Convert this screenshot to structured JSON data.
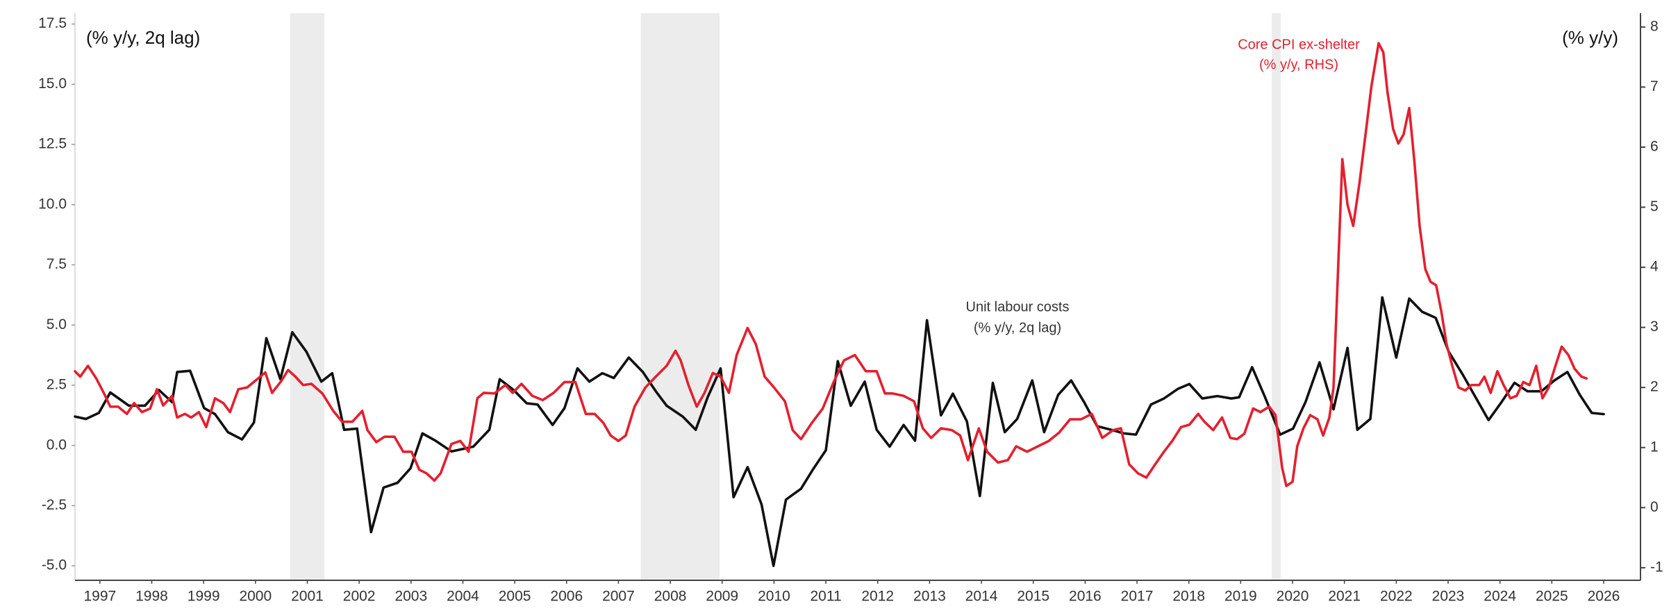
{
  "chart_data": {
    "type": "line",
    "left_axis_label": "(% y/y, 2q lag)",
    "right_axis_label": "(% y/y)",
    "xlim": [
      1997.02,
      2027.21
    ],
    "xticks": [
      {
        "value": 1997.5,
        "label": "1997"
      },
      {
        "value": 1998.5,
        "label": "1998"
      },
      {
        "value": 1999.5,
        "label": "1999"
      },
      {
        "value": 2000.5,
        "label": "2000"
      },
      {
        "value": 2001.5,
        "label": "2001"
      },
      {
        "value": 2002.5,
        "label": "2002"
      },
      {
        "value": 2003.5,
        "label": "2003"
      },
      {
        "value": 2004.5,
        "label": "2004"
      },
      {
        "value": 2005.5,
        "label": "2005"
      },
      {
        "value": 2006.5,
        "label": "2006"
      },
      {
        "value": 2007.5,
        "label": "2007"
      },
      {
        "value": 2008.5,
        "label": "2008"
      },
      {
        "value": 2009.5,
        "label": "2009"
      },
      {
        "value": 2010.5,
        "label": "2010"
      },
      {
        "value": 2011.5,
        "label": "2011"
      },
      {
        "value": 2012.5,
        "label": "2012"
      },
      {
        "value": 2013.5,
        "label": "2013"
      },
      {
        "value": 2014.5,
        "label": "2014"
      },
      {
        "value": 2015.5,
        "label": "2015"
      },
      {
        "value": 2016.5,
        "label": "2016"
      },
      {
        "value": 2017.5,
        "label": "2017"
      },
      {
        "value": 2018.5,
        "label": "2018"
      },
      {
        "value": 2019.5,
        "label": "2019"
      },
      {
        "value": 2020.5,
        "label": "2020"
      },
      {
        "value": 2021.5,
        "label": "2021"
      },
      {
        "value": 2022.5,
        "label": "2022"
      },
      {
        "value": 2023.5,
        "label": "2023"
      },
      {
        "value": 2024.5,
        "label": "2024"
      },
      {
        "value": 2025.5,
        "label": "2025"
      },
      {
        "value": 2026.5,
        "label": "2026"
      }
    ],
    "ylim": [
      -5.6,
      17.95
    ],
    "yticks": [
      {
        "value": -5,
        "label": "-5.0"
      },
      -2.5,
      {
        "value": 0,
        "label": "0.0"
      },
      2.5,
      {
        "value": 5,
        "label": "5.0"
      },
      7.5,
      {
        "value": 10,
        "label": "10.0"
      },
      12.5,
      {
        "value": 15,
        "label": "15.0"
      },
      17.5
    ],
    "y2lim": [
      -1.21,
      8.23
    ],
    "y2ticks": [
      -1,
      0,
      1,
      2,
      3,
      4,
      5,
      6,
      7,
      8
    ],
    "grid": false,
    "shading_color": "#ececec",
    "shading": [
      [
        2001.17,
        2001.83
      ],
      [
        2007.93,
        2009.45
      ],
      [
        2020.1,
        2020.27
      ]
    ],
    "series": [
      {
        "name": "Unit labour costs",
        "note": "(% y/y, 2q lag)",
        "color": "#111111",
        "axis": "y",
        "x": [
          1997.02,
          1997.23,
          1997.48,
          1997.7,
          1998.06,
          1998.37,
          1998.64,
          1998.89,
          1998.99,
          1999.24,
          1999.51,
          1999.72,
          1999.97,
          2000.24,
          2000.47,
          2000.71,
          2000.98,
          2001.21,
          2001.48,
          2001.77,
          2001.98,
          2002.21,
          2002.46,
          2002.73,
          2002.97,
          2003.24,
          2003.49,
          2003.72,
          2003.97,
          2004.28,
          2004.7,
          2005.01,
          2005.21,
          2005.48,
          2005.73,
          2005.94,
          2006.23,
          2006.46,
          2006.71,
          2006.94,
          2007.19,
          2007.41,
          2007.7,
          2007.97,
          2008.22,
          2008.43,
          2008.74,
          2008.99,
          2009.22,
          2009.47,
          2009.72,
          2009.99,
          2010.26,
          2010.49,
          2010.73,
          2011.02,
          2011.25,
          2011.5,
          2011.73,
          2011.98,
          2012.25,
          2012.48,
          2012.73,
          2013.0,
          2013.22,
          2013.45,
          2013.72,
          2013.95,
          2014.22,
          2014.47,
          2014.72,
          2014.95,
          2015.19,
          2015.48,
          2015.71,
          2015.98,
          2016.23,
          2016.48,
          2016.73,
          2017.0,
          2017.25,
          2017.48,
          2017.77,
          2018.02,
          2018.29,
          2018.51,
          2018.76,
          2019.05,
          2019.32,
          2019.47,
          2019.72,
          2019.97,
          2020.26,
          2020.51,
          2020.75,
          2021.02,
          2021.29,
          2021.56,
          2021.75,
          2022.0,
          2022.23,
          2022.5,
          2022.75,
          2023.0,
          2023.26,
          2023.51,
          2023.78,
          2024.03,
          2024.28,
          2024.53,
          2024.78,
          2025.03,
          2025.3,
          2025.55,
          2025.8,
          2026.04,
          2026.27,
          2026.5
        ],
        "values": [
          1.2,
          1.1,
          1.35,
          2.2,
          1.65,
          1.65,
          2.3,
          1.8,
          3.05,
          3.1,
          1.55,
          1.3,
          0.55,
          0.25,
          0.95,
          4.45,
          2.75,
          4.7,
          3.9,
          2.65,
          3.0,
          0.65,
          0.7,
          -3.6,
          -1.75,
          -1.55,
          -0.95,
          0.5,
          0.2,
          -0.25,
          -0.05,
          0.65,
          2.75,
          2.3,
          1.75,
          1.7,
          0.85,
          1.55,
          3.2,
          2.65,
          3.0,
          2.8,
          3.65,
          3.05,
          2.25,
          1.65,
          1.2,
          0.65,
          2.0,
          3.2,
          -2.15,
          -0.9,
          -2.45,
          -5.0,
          -2.25,
          -1.8,
          -1.0,
          -0.2,
          3.5,
          1.65,
          2.65,
          0.65,
          -0.05,
          0.85,
          0.2,
          5.2,
          1.25,
          2.15,
          1.0,
          -2.1,
          2.6,
          0.55,
          1.1,
          2.7,
          0.55,
          2.1,
          2.7,
          1.8,
          0.8,
          0.65,
          0.5,
          0.45,
          1.7,
          1.95,
          2.35,
          2.55,
          1.95,
          2.05,
          1.95,
          2.0,
          3.25,
          2.0,
          0.45,
          0.7,
          1.8,
          3.45,
          1.5,
          4.05,
          0.65,
          1.1,
          6.15,
          3.65,
          6.1,
          5.55,
          5.3,
          3.9,
          2.95,
          2.0,
          1.05,
          1.8,
          2.6,
          2.25,
          2.25,
          2.7,
          3.05,
          2.1,
          1.35,
          1.3
        ]
      },
      {
        "name": "Core CPI ex-shelter",
        "note": "(% y/y, RHS)",
        "color": "#e3202f",
        "axis": "y2",
        "x": [
          1997.02,
          1997.12,
          1997.27,
          1997.43,
          1997.58,
          1997.7,
          1997.85,
          1998.02,
          1998.16,
          1998.31,
          1998.47,
          1998.6,
          1998.72,
          1998.89,
          1998.99,
          1999.14,
          1999.26,
          1999.41,
          1999.55,
          1999.72,
          1999.88,
          2000.01,
          2000.17,
          2000.34,
          2000.55,
          2000.69,
          2000.82,
          2001.0,
          2001.13,
          2001.27,
          2001.42,
          2001.58,
          2001.79,
          2002.0,
          2002.17,
          2002.37,
          2002.56,
          2002.66,
          2002.83,
          2002.99,
          2003.18,
          2003.35,
          2003.51,
          2003.66,
          2003.8,
          2003.95,
          2004.07,
          2004.28,
          2004.45,
          2004.61,
          2004.78,
          2004.9,
          2005.11,
          2005.32,
          2005.46,
          2005.63,
          2005.84,
          2006.04,
          2006.25,
          2006.46,
          2006.67,
          2006.87,
          2007.04,
          2007.21,
          2007.35,
          2007.5,
          2007.64,
          2007.81,
          2008.02,
          2008.22,
          2008.43,
          2008.6,
          2008.7,
          2008.85,
          2009.01,
          2009.16,
          2009.32,
          2009.47,
          2009.63,
          2009.78,
          2009.99,
          2010.15,
          2010.32,
          2010.5,
          2010.71,
          2010.86,
          2011.02,
          2011.23,
          2011.44,
          2011.65,
          2011.85,
          2012.06,
          2012.27,
          2012.48,
          2012.64,
          2012.79,
          2013.0,
          2013.2,
          2013.37,
          2013.53,
          2013.72,
          2013.93,
          2014.09,
          2014.24,
          2014.45,
          2014.61,
          2014.82,
          2015.01,
          2015.17,
          2015.38,
          2015.59,
          2015.8,
          2016.0,
          2016.21,
          2016.42,
          2016.63,
          2016.83,
          2017.04,
          2017.19,
          2017.35,
          2017.52,
          2017.68,
          2017.85,
          2018.02,
          2018.18,
          2018.35,
          2018.51,
          2018.68,
          2018.8,
          2018.97,
          2019.14,
          2019.3,
          2019.43,
          2019.57,
          2019.74,
          2019.88,
          2020.05,
          2020.17,
          2020.3,
          2020.38,
          2020.5,
          2020.59,
          2020.71,
          2020.84,
          2020.98,
          2021.09,
          2021.21,
          2021.29,
          2021.46,
          2021.56,
          2021.67,
          2021.79,
          2021.92,
          2022.02,
          2022.16,
          2022.25,
          2022.33,
          2022.44,
          2022.54,
          2022.64,
          2022.75,
          2022.85,
          2022.95,
          2023.06,
          2023.16,
          2023.27,
          2023.37,
          2023.47,
          2023.58,
          2023.7,
          2023.83,
          2023.95,
          2024.1,
          2024.2,
          2024.32,
          2024.45,
          2024.57,
          2024.7,
          2024.82,
          2024.95,
          2025.07,
          2025.2,
          2025.32,
          2025.44,
          2025.57,
          2025.69,
          2025.82,
          2025.94,
          2026.07,
          2026.17
        ],
        "values": [
          2.27,
          2.18,
          2.36,
          2.15,
          1.9,
          1.68,
          1.68,
          1.56,
          1.74,
          1.59,
          1.65,
          1.97,
          1.7,
          1.86,
          1.5,
          1.56,
          1.5,
          1.59,
          1.34,
          1.82,
          1.74,
          1.59,
          1.97,
          2.0,
          2.15,
          2.25,
          1.91,
          2.11,
          2.29,
          2.18,
          2.04,
          2.06,
          1.9,
          1.61,
          1.43,
          1.43,
          1.61,
          1.29,
          1.09,
          1.18,
          1.18,
          0.93,
          0.93,
          0.63,
          0.57,
          0.45,
          0.57,
          1.06,
          1.11,
          0.93,
          1.82,
          1.91,
          1.9,
          2.04,
          1.91,
          2.06,
          1.86,
          1.79,
          1.91,
          2.09,
          2.09,
          1.56,
          1.56,
          1.41,
          1.2,
          1.11,
          1.2,
          1.68,
          2.0,
          2.18,
          2.36,
          2.61,
          2.45,
          2.04,
          1.68,
          1.91,
          2.24,
          2.18,
          1.91,
          2.54,
          2.99,
          2.72,
          2.18,
          2.0,
          1.77,
          1.29,
          1.14,
          1.41,
          1.65,
          2.09,
          2.45,
          2.54,
          2.27,
          2.27,
          1.9,
          1.9,
          1.86,
          1.77,
          1.32,
          1.16,
          1.32,
          1.29,
          1.2,
          0.79,
          1.32,
          0.93,
          0.75,
          0.79,
          1.02,
          0.93,
          1.02,
          1.11,
          1.25,
          1.47,
          1.47,
          1.56,
          1.16,
          1.29,
          1.32,
          0.72,
          0.57,
          0.5,
          0.72,
          0.93,
          1.11,
          1.34,
          1.38,
          1.56,
          1.43,
          1.29,
          1.5,
          1.16,
          1.14,
          1.23,
          1.65,
          1.59,
          1.68,
          1.54,
          0.66,
          0.36,
          0.43,
          1.02,
          1.32,
          1.54,
          1.47,
          1.2,
          1.5,
          2.0,
          5.8,
          5.04,
          4.69,
          5.4,
          6.3,
          7.01,
          7.73,
          7.58,
          6.92,
          6.3,
          6.06,
          6.21,
          6.65,
          5.76,
          4.69,
          3.97,
          3.76,
          3.7,
          3.26,
          2.72,
          2.36,
          2.0,
          1.95,
          2.04,
          2.04,
          2.18,
          1.91,
          2.27,
          2.04,
          1.82,
          1.86,
          2.09,
          2.04,
          2.36,
          1.82,
          2.0,
          2.36,
          2.68,
          2.54,
          2.31,
          2.18,
          2.15
        ]
      }
    ]
  }
}
